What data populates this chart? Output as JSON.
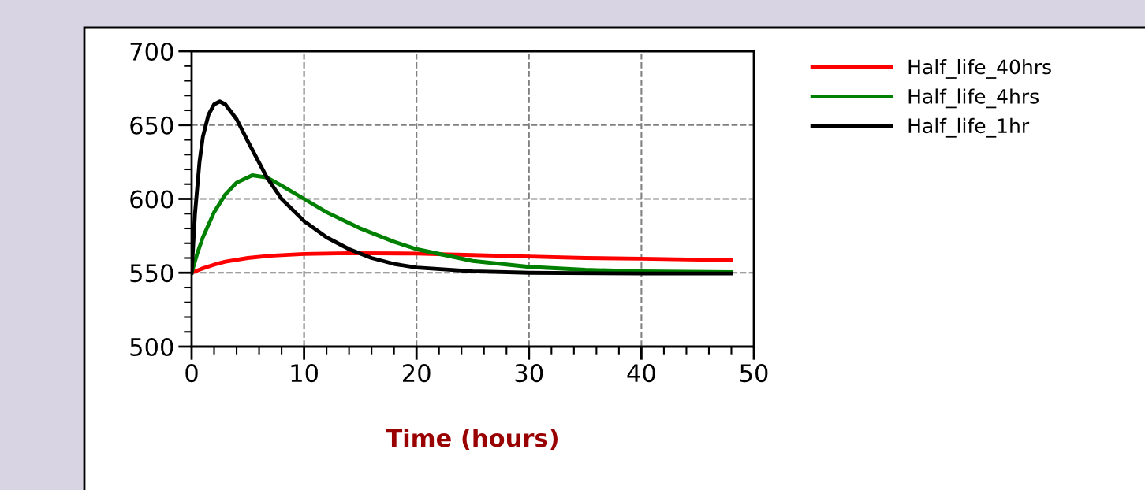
{
  "chart_data": {
    "type": "line",
    "xlabel": "Time (hours)",
    "xlim": [
      0,
      50
    ],
    "xticks": [
      0,
      10,
      20,
      30,
      40,
      50
    ],
    "ylim": [
      500,
      700
    ],
    "yticks": [
      500,
      550,
      600,
      650,
      700
    ],
    "grid": true,
    "legend": "top right",
    "line_style": "solid",
    "marker": "none",
    "series": [
      {
        "name": "Half_life_40hrs",
        "color": "#ff0000",
        "x": [
          0,
          1,
          2,
          3,
          5,
          7,
          10,
          14,
          20,
          25,
          30,
          35,
          40,
          48
        ],
        "values": [
          550,
          553,
          555.5,
          557.5,
          560,
          561.5,
          562.7,
          563.3,
          563,
          562,
          561,
          560,
          559.5,
          558.5
        ]
      },
      {
        "name": "Half_life_4hrs",
        "color": "#008000",
        "x": [
          0,
          0.5,
          1,
          2,
          3,
          4,
          5.4,
          6.7,
          8,
          10,
          12,
          15,
          18,
          20,
          25,
          30,
          35,
          40,
          48
        ],
        "values": [
          550,
          563,
          574,
          591,
          603,
          611,
          616,
          614.5,
          609,
          600,
          591,
          580,
          571,
          566,
          558,
          554,
          552,
          551,
          550.5
        ]
      },
      {
        "name": "Half_life_1hr",
        "color": "#000000",
        "x": [
          0,
          0.3,
          0.7,
          1,
          1.5,
          2,
          2.5,
          3,
          4,
          5,
          6.7,
          8,
          10,
          12,
          14,
          16,
          18,
          20,
          25,
          30,
          40,
          48
        ],
        "values": [
          550,
          590,
          625,
          642,
          657,
          664,
          666,
          664,
          654,
          639,
          614.5,
          600,
          585,
          574,
          566,
          560,
          556,
          553.5,
          551,
          550,
          549.5,
          549.5
        ]
      }
    ]
  }
}
